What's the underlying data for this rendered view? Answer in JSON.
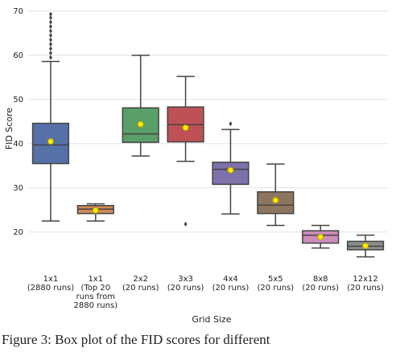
{
  "chart_data": {
    "type": "box",
    "x_label": "Grid Size",
    "y_label": "FID Score",
    "categories": [
      [
        "1x1",
        "(2880 runs)"
      ],
      [
        "1x1",
        "(Top 20",
        "runs from",
        "2880 runs)"
      ],
      [
        "2x2",
        "(20 runs)"
      ],
      [
        "3x3",
        "(20 runs)"
      ],
      [
        "4x4",
        "(20 runs)"
      ],
      [
        "5x5",
        "(20 runs)"
      ],
      [
        "8x8",
        "(20 runs)"
      ],
      [
        "12x12",
        "(20 runs)"
      ]
    ],
    "colors": [
      "#5571a8",
      "#cc8a5a",
      "#5a9e6a",
      "#bd5156",
      "#7e70a8",
      "#8d7660",
      "#cc8cbc",
      "#8c8c8c"
    ],
    "whislo": [
      22.5,
      22.5,
      37.2,
      36,
      24.1,
      21.5,
      16.4,
      14.4
    ],
    "q1": [
      35.5,
      24.2,
      40.3,
      40.4,
      30.8,
      24.2,
      17.5,
      16
    ],
    "median": [
      39.7,
      25.2,
      42.2,
      44.3,
      34.2,
      26.1,
      19.3,
      16.8
    ],
    "q3": [
      44.6,
      26,
      48.1,
      48.3,
      35.8,
      29.1,
      20.3,
      17.9
    ],
    "whishi": [
      58.6,
      26.4,
      60,
      55.2,
      43.2,
      35.4,
      21.5,
      19.3
    ],
    "mean": [
      40.5,
      24.9,
      44.4,
      43.6,
      34,
      27.2,
      18.9,
      16.9
    ],
    "fliers": [
      [
        59.5,
        60.5,
        61.5,
        62.5,
        63.5,
        64.5,
        65.5,
        66.5,
        67.5,
        68.5,
        69.3
      ],
      [],
      [],
      [
        21.8
      ],
      [
        44.5
      ],
      [],
      [],
      []
    ],
    "ylim": [
      11.6,
      72.5
    ],
    "yticks": [
      20,
      30,
      40,
      50,
      60,
      70
    ],
    "grid": true
  },
  "caption": "Figure 3: Box plot of the FID scores for different"
}
